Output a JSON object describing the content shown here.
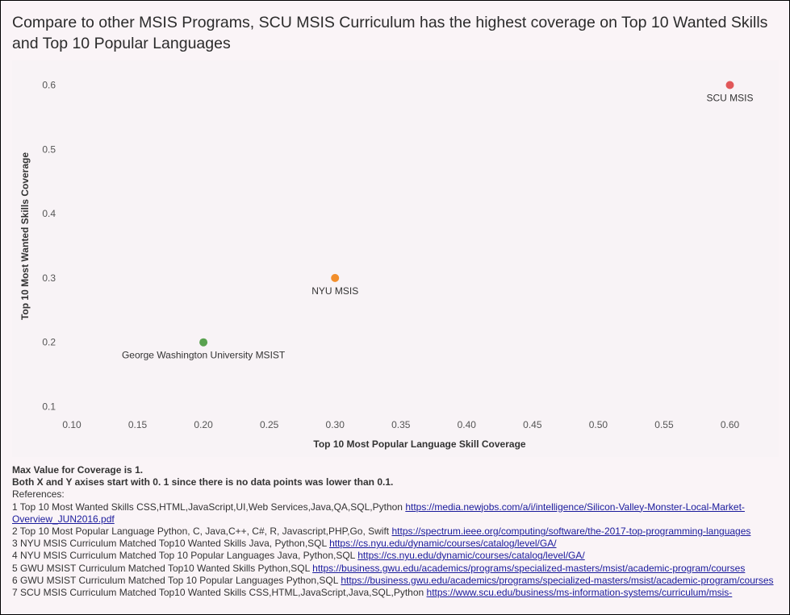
{
  "title": "Compare to other MSIS Programs, SCU MSIS Curriculum has the highest coverage on  Top 10 Wanted Skills and Top 10 Popular Languages",
  "chart_data": {
    "type": "scatter",
    "xlabel": "Top 10 Most Popular Language Skill Coverage",
    "ylabel": "Top 10 Most Wanted Skills Coverage",
    "xlim": [
      0.1,
      0.62
    ],
    "ylim": [
      0.1,
      0.6
    ],
    "x_ticks": [
      "0.10",
      "0.15",
      "0.20",
      "0.25",
      "0.30",
      "0.35",
      "0.40",
      "0.45",
      "0.50",
      "0.55",
      "0.60"
    ],
    "y_ticks": [
      "0.1",
      "0.2",
      "0.3",
      "0.4",
      "0.5",
      "0.6"
    ],
    "grid": false,
    "points": [
      {
        "label": "George Washington University MSIST",
        "x": 0.2,
        "y": 0.2,
        "color": "#59a14f"
      },
      {
        "label": "NYU MSIS",
        "x": 0.3,
        "y": 0.3,
        "color": "#f28e2b"
      },
      {
        "label": "SCU MSIS",
        "x": 0.6,
        "y": 0.6,
        "color": "#e15759"
      }
    ]
  },
  "notes": {
    "max_value": "Max Value for Coverage is 1.",
    "axis_note": "Both X and Y axises start with 0. 1 since there is no data points was lower than 0.1.",
    "references_title": "References:",
    "references": [
      {
        "text": "1  Top 10 Most Wanted Skills CSS,HTML,JavaScript,UI,Web Services,Java,QA,SQL,Python ",
        "link": "https://media.newjobs.com/a/i/intelligence/Silicon-Valley-Monster-Local-Market-Overview_JUN2016.pdf"
      },
      {
        "text": "2  Top 10 Most Popular Language Python, C, Java,C++, C#, R, Javascript,PHP,Go, Swift ",
        "link": "https://spectrum.ieee.org/computing/software/the-2017-top-programming-languages"
      },
      {
        "text": "3  NYU MSIS Curriculum Matched Top10 Wanted Skills Java, Python,SQL ",
        "link": "https://cs.nyu.edu/dynamic/courses/catalog/level/GA/"
      },
      {
        "text": "4  NYU MSIS Curriculum Matched Top 10 Popular Languages Java, Python,SQL ",
        "link": "https://cs.nyu.edu/dynamic/courses/catalog/level/GA/"
      },
      {
        "text": "5  GWU MSIST Curriculum Matched Top10 Wanted Skills  Python,SQL ",
        "link": "https://business.gwu.edu/academics/programs/specialized-masters/msist/academic-program/courses"
      },
      {
        "text": "6 GWU MSIST Curriculum Matched Top 10 Popular Languages  Python,SQL ",
        "link": "https://business.gwu.edu/academics/programs/specialized-masters/msist/academic-program/courses"
      },
      {
        "text": "7 SCU MSIS Curriculum Matched Top10 Wanted Skills CSS,HTML,JavaScript,Java,SQL,Python ",
        "link": "https://www.scu.edu/business/ms-information-systems/curriculum/msis-"
      }
    ]
  }
}
